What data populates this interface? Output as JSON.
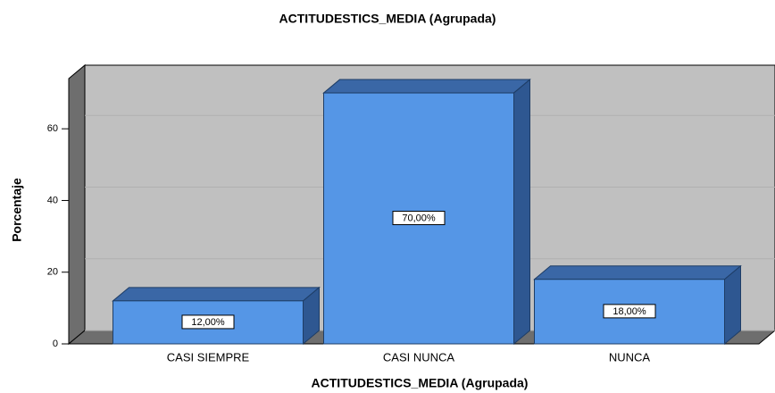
{
  "chart_data": {
    "type": "bar3d",
    "title": "ACTITUDESTICS_MEDIA (Agrupada)",
    "x_label": "ACTITUDESTICS_MEDIA (Agrupada)",
    "y_label": "Porcentaje",
    "categories": [
      "CASI SIEMPRE",
      "CASI NUNCA",
      "NUNCA"
    ],
    "values": [
      12,
      70,
      18
    ],
    "value_labels": [
      "12,00%",
      "70,00%",
      "18,00%"
    ],
    "color": "#5596e6",
    "ylim": [
      0,
      74
    ],
    "yticks": [
      0,
      20,
      40,
      60
    ],
    "grid": true
  }
}
